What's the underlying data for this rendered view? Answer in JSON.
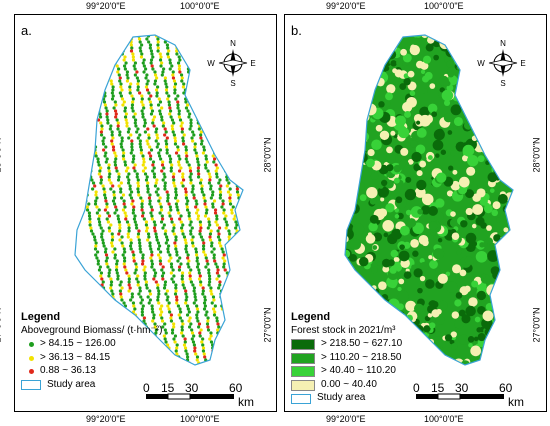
{
  "map_data": {
    "axes": {
      "x_ticks": [
        "99°20'0\"E",
        "100°0'0\"E"
      ],
      "y_ticks": [
        "28°0'0\"N",
        "27°0'0\"N"
      ]
    },
    "panel_a": {
      "label": "a.",
      "legend_title": "Legend",
      "legend_subtitle": "Aboveground Biomass/  (t·hm⁻²)",
      "classes": [
        {
          "label": "> 84.15 ~ 126.00",
          "color": "#1e9e1e"
        },
        {
          "label": "> 36.13 ~ 84.15",
          "color": "#f2e200"
        },
        {
          "label": "0.88 ~ 36.13",
          "color": "#e0281a"
        }
      ],
      "study_area": "Study area"
    },
    "panel_b": {
      "label": "b.",
      "legend_title": "Legend",
      "legend_subtitle": "Forest stock in 2021/m³",
      "classes": [
        {
          "label": "> 218.50 ~ 627.10",
          "color": "#0a6b0a"
        },
        {
          "label": "> 110.20 ~ 218.50",
          "color": "#21a321"
        },
        {
          "label": "> 40.40 ~ 110.20",
          "color": "#38d238"
        },
        {
          "label": "0.00 ~ 40.40",
          "color": "#f5f0b3"
        }
      ],
      "study_area": "Study area"
    },
    "scale_bar": {
      "ticks": [
        "0",
        "15",
        "30",
        "60"
      ],
      "unit": "km"
    },
    "compass": {
      "N": "N",
      "E": "E",
      "S": "S",
      "W": "W"
    },
    "outline_color": "#3aa3d6"
  }
}
